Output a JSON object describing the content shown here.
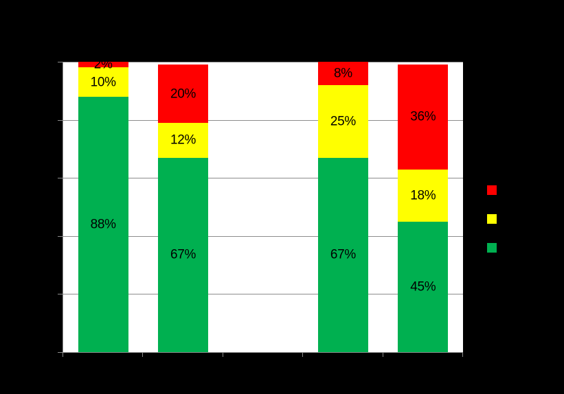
{
  "chart": {
    "background_color": "#000000",
    "plot_background_color": "#FFFFFF",
    "axis_color": "#8C8C8C",
    "gridline_color": "#8C8C8C",
    "label_text_color": "#000000"
  },
  "chart_data": {
    "type": "bar",
    "stacked": true,
    "orientation": "vertical",
    "ylim": [
      0,
      100
    ],
    "grid": true,
    "gridline_step": 20,
    "num_category_slots": 5,
    "note_empty_slot": 3,
    "series_order_bottom_to_top": [
      "green",
      "yellow",
      "red"
    ],
    "series_colors": {
      "green": "#00B050",
      "yellow": "#FFFF00",
      "red": "#FF0000"
    },
    "bars": [
      {
        "slot": 1,
        "values": {
          "green": 88,
          "yellow": 10,
          "red": 2
        },
        "labels": {
          "green": "88%",
          "yellow": "10%",
          "red": "2%"
        }
      },
      {
        "slot": 2,
        "values": {
          "green": 67,
          "yellow": 12,
          "red": 20
        },
        "labels": {
          "green": "67%",
          "yellow": "12%",
          "red": "20%"
        }
      },
      {
        "slot": 4,
        "values": {
          "green": 67,
          "yellow": 25,
          "red": 8
        },
        "labels": {
          "green": "67%",
          "yellow": "25%",
          "red": "8%"
        }
      },
      {
        "slot": 5,
        "values": {
          "green": 45,
          "yellow": 18,
          "red": 36
        },
        "labels": {
          "green": "45%",
          "yellow": "18%",
          "red": "36%"
        }
      }
    ],
    "legend_position": "right",
    "legend_swatches_top_to_bottom": [
      {
        "key": "red",
        "color": "#FF0000"
      },
      {
        "key": "yellow",
        "color": "#FFFF00"
      },
      {
        "key": "green",
        "color": "#00B050"
      }
    ]
  }
}
